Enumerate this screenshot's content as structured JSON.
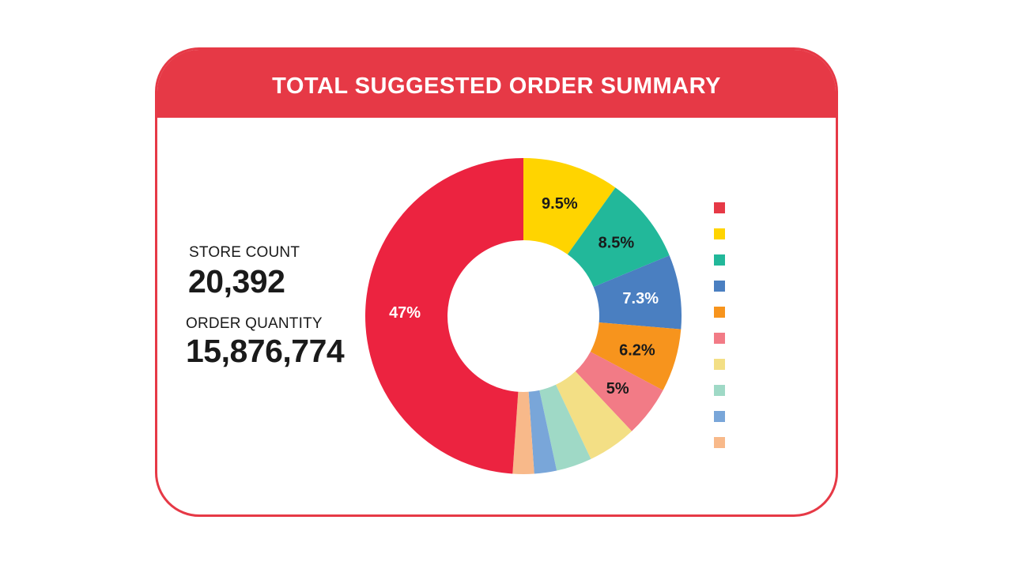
{
  "header": {
    "title": "TOTAL SUGGESTED ORDER SUMMARY"
  },
  "stats": {
    "store_count_label": "STORE COUNT",
    "store_count_value": "20,392",
    "order_quantity_label": "ORDER QUANTITY",
    "order_quantity_value": "15,876,774"
  },
  "colors": {
    "accent": "#e63946"
  },
  "chart_data": {
    "type": "pie",
    "donut": true,
    "start_angle_deg": 0,
    "direction": "clockwise",
    "slices": [
      {
        "value": 9.5,
        "label": "9.5%",
        "color": "#ffd400",
        "label_color": "#1a1a1a"
      },
      {
        "value": 8.5,
        "label": "8.5%",
        "color": "#22b89a",
        "label_color": "#1a1a1a"
      },
      {
        "value": 7.3,
        "label": "7.3%",
        "color": "#4a7fc1",
        "label_color": "#ffffff"
      },
      {
        "value": 6.2,
        "label": "6.2%",
        "color": "#f7941d",
        "label_color": "#1a1a1a"
      },
      {
        "value": 5.0,
        "label": "5%",
        "color": "#f27b86",
        "label_color": "#1a1a1a"
      },
      {
        "value": 4.8,
        "label": "",
        "color": "#f3df85",
        "label_color": "#1a1a1a"
      },
      {
        "value": 3.5,
        "label": "",
        "color": "#9fd9c6",
        "label_color": "#1a1a1a"
      },
      {
        "value": 2.2,
        "label": "",
        "color": "#79a6d9",
        "label_color": "#1a1a1a"
      },
      {
        "value": 2.1,
        "label": "",
        "color": "#f8b98a",
        "label_color": "#1a1a1a"
      },
      {
        "value": 47.0,
        "label": "47%",
        "color": "#ec2340",
        "label_color": "#ffffff"
      }
    ],
    "legend": {
      "position": "right",
      "items": [
        {
          "label": "",
          "color": "#e63946"
        },
        {
          "label": "",
          "color": "#ffd400"
        },
        {
          "label": "",
          "color": "#22b89a"
        },
        {
          "label": "",
          "color": "#4a7fc1"
        },
        {
          "label": "",
          "color": "#f7941d"
        },
        {
          "label": "",
          "color": "#f27b86"
        },
        {
          "label": "",
          "color": "#f3df85"
        },
        {
          "label": "",
          "color": "#9fd9c6"
        },
        {
          "label": "",
          "color": "#79a6d9"
        },
        {
          "label": "",
          "color": "#f8b98a"
        }
      ]
    }
  }
}
